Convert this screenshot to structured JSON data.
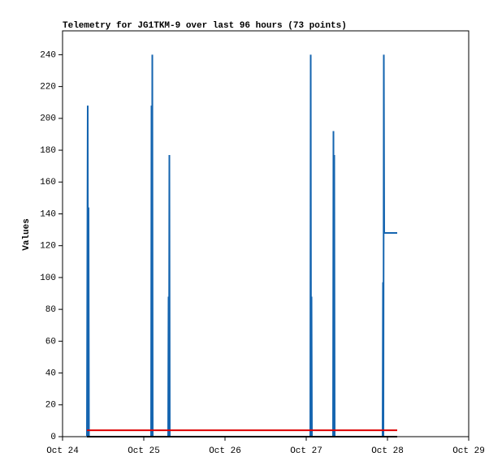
{
  "chart_data": {
    "type": "line",
    "title": "Telemetry for JG1TKM-9 over last 96 hours (73 points)",
    "y_label": "Values",
    "xlim": [
      0,
      5
    ],
    "xticks": [
      {
        "value": 0,
        "label": "Oct 24"
      },
      {
        "value": 1,
        "label": "Oct 25"
      },
      {
        "value": 2,
        "label": "Oct 26"
      },
      {
        "value": 3,
        "label": "Oct 27"
      },
      {
        "value": 4,
        "label": "Oct 28"
      },
      {
        "value": 5,
        "label": "Oct 29"
      }
    ],
    "ylim": [
      0,
      255
    ],
    "yticks": [
      0,
      20,
      40,
      60,
      80,
      100,
      120,
      140,
      160,
      180,
      200,
      220,
      240
    ],
    "series": [
      {
        "color": "#1565b0",
        "x": [
          0.3,
          0.31,
          0.315,
          0.32,
          0.325,
          1.09,
          1.095,
          1.1,
          1.105,
          1.11,
          1.3,
          1.305,
          1.31,
          1.315,
          1.32,
          3.05,
          3.055,
          3.06,
          3.065,
          3.07,
          3.33,
          3.335,
          3.34,
          3.345,
          3.35,
          3.94,
          3.945,
          3.95,
          3.955,
          3.96,
          4.12
        ],
        "values": [
          0,
          208,
          0,
          144,
          0,
          0,
          208,
          0,
          240,
          0,
          0,
          88,
          0,
          177,
          0,
          0,
          240,
          0,
          88,
          0,
          0,
          192,
          0,
          177,
          0,
          0,
          97,
          0,
          240,
          128,
          128
        ]
      },
      {
        "color": "#000000",
        "x": [
          0.3,
          4.12
        ],
        "values": [
          0,
          0
        ]
      },
      {
        "color": "#dd0000",
        "x": [
          0.3,
          4.12
        ],
        "values": [
          4,
          4
        ]
      }
    ]
  }
}
